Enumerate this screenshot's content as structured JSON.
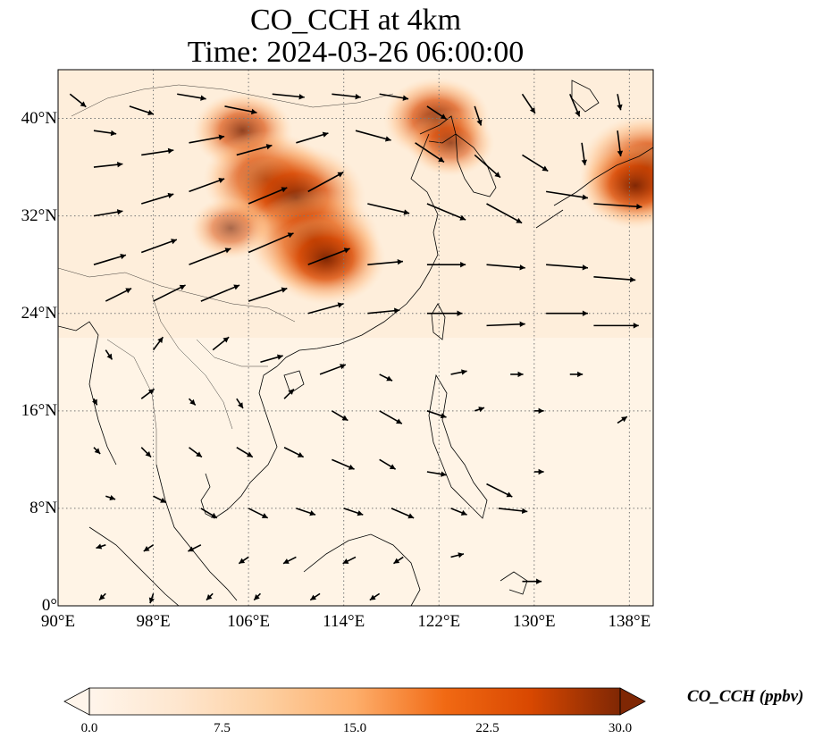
{
  "title": {
    "line1": "CO_CCH at 4km",
    "line2": "Time: 2024-03-26 06:00:00"
  },
  "map": {
    "lon_range": [
      90,
      140
    ],
    "lat_range": [
      0,
      44
    ],
    "lat_ticks": [
      {
        "value": 0,
        "label": "0°"
      },
      {
        "value": 8,
        "label": "8°N"
      },
      {
        "value": 16,
        "label": "16°N"
      },
      {
        "value": 24,
        "label": "24°N"
      },
      {
        "value": 32,
        "label": "32°N"
      },
      {
        "value": 40,
        "label": "40°N"
      }
    ],
    "lon_ticks": [
      {
        "value": 90,
        "label": "90°E"
      },
      {
        "value": 98,
        "label": "98°E"
      },
      {
        "value": 106,
        "label": "106°E"
      },
      {
        "value": 114,
        "label": "114°E"
      },
      {
        "value": 122,
        "label": "122°E"
      },
      {
        "value": 130,
        "label": "130°E"
      },
      {
        "value": 138,
        "label": "138°E"
      }
    ],
    "gridlines": "dotted",
    "plumes": [
      {
        "lon": 105.5,
        "lat": 39.0,
        "value": 18
      },
      {
        "lon": 107.5,
        "lat": 35.0,
        "value": 26
      },
      {
        "lon": 110.0,
        "lat": 33.5,
        "value": 30
      },
      {
        "lon": 111.5,
        "lat": 30.0,
        "value": 28
      },
      {
        "lon": 112.5,
        "lat": 28.5,
        "value": 24
      },
      {
        "lon": 104.5,
        "lat": 31.0,
        "value": 12
      },
      {
        "lon": 121.8,
        "lat": 40.0,
        "value": 20
      },
      {
        "lon": 123.0,
        "lat": 38.0,
        "value": 14
      },
      {
        "lon": 139.5,
        "lat": 36.0,
        "value": 29
      },
      {
        "lon": 138.5,
        "lat": 34.5,
        "value": 22
      }
    ],
    "wind_vectors": [
      [
        91,
        42,
        1.0,
        -0.8
      ],
      [
        93,
        39,
        1.4,
        -0.2
      ],
      [
        96,
        41,
        1.5,
        -0.5
      ],
      [
        100,
        42,
        1.8,
        -0.3
      ],
      [
        104,
        41,
        2.0,
        -0.4
      ],
      [
        108,
        42,
        2.0,
        -0.2
      ],
      [
        113,
        42,
        1.8,
        -0.2
      ],
      [
        117,
        42,
        1.8,
        -0.3
      ],
      [
        121,
        41,
        1.2,
        -0.8
      ],
      [
        125,
        41,
        0.4,
        -1.2
      ],
      [
        129,
        42,
        0.8,
        -1.2
      ],
      [
        133,
        42,
        0.6,
        -1.4
      ],
      [
        137,
        42,
        0.2,
        -1.0
      ],
      [
        93,
        36,
        1.8,
        0.2
      ],
      [
        97,
        37,
        2.0,
        0.3
      ],
      [
        101,
        38,
        2.2,
        0.4
      ],
      [
        105,
        37,
        2.2,
        0.6
      ],
      [
        110,
        38,
        2.0,
        0.6
      ],
      [
        115,
        39,
        2.2,
        -0.6
      ],
      [
        120,
        38,
        1.8,
        -1.2
      ],
      [
        125,
        37,
        1.6,
        -1.4
      ],
      [
        129,
        37,
        1.6,
        -1.0
      ],
      [
        134,
        38,
        0.2,
        -1.4
      ],
      [
        137,
        39,
        0.2,
        -1.6
      ],
      [
        93,
        32,
        1.8,
        0.3
      ],
      [
        97,
        33,
        2.0,
        0.6
      ],
      [
        101,
        34,
        2.2,
        0.8
      ],
      [
        106,
        33,
        2.4,
        1.0
      ],
      [
        111,
        34,
        2.2,
        1.2
      ],
      [
        116,
        33,
        2.6,
        -0.6
      ],
      [
        121,
        33,
        2.4,
        -1.0
      ],
      [
        126,
        33,
        2.2,
        -1.2
      ],
      [
        131,
        34,
        2.6,
        -0.4
      ],
      [
        135,
        33,
        3.0,
        -0.2
      ],
      [
        93,
        28,
        2.0,
        0.6
      ],
      [
        97,
        29,
        2.2,
        0.8
      ],
      [
        101,
        28,
        2.6,
        1.0
      ],
      [
        106,
        29,
        2.8,
        1.2
      ],
      [
        111,
        28,
        2.6,
        1.0
      ],
      [
        116,
        28,
        2.2,
        0.2
      ],
      [
        121,
        28,
        2.4,
        0.0
      ],
      [
        126,
        28,
        2.4,
        -0.2
      ],
      [
        131,
        28,
        2.6,
        -0.2
      ],
      [
        135,
        27,
        2.6,
        -0.2
      ],
      [
        94,
        25,
        1.6,
        0.8
      ],
      [
        98,
        25,
        2.0,
        1.0
      ],
      [
        102,
        25,
        2.4,
        1.0
      ],
      [
        106,
        25,
        2.4,
        0.8
      ],
      [
        111,
        24,
        2.2,
        0.6
      ],
      [
        116,
        24,
        2.0,
        0.2
      ],
      [
        121,
        24,
        2.2,
        0.0
      ],
      [
        126,
        23,
        2.4,
        0.1
      ],
      [
        131,
        24,
        2.6,
        0.0
      ],
      [
        135,
        23,
        2.8,
        0.0
      ],
      [
        94,
        21,
        0.4,
        -0.6
      ],
      [
        98,
        21,
        0.6,
        0.8
      ],
      [
        103,
        21,
        1.0,
        0.8
      ],
      [
        107,
        20,
        1.4,
        0.4
      ],
      [
        112,
        19,
        1.6,
        0.6
      ],
      [
        117,
        19,
        0.8,
        -0.4
      ],
      [
        123,
        19,
        1.0,
        0.2
      ],
      [
        128,
        19,
        0.8,
        0.0
      ],
      [
        133,
        19,
        0.8,
        0.0
      ],
      [
        93,
        17,
        0.2,
        -0.4
      ],
      [
        97,
        17,
        0.8,
        0.6
      ],
      [
        101,
        17,
        0.4,
        -0.4
      ],
      [
        105,
        17,
        0.4,
        -0.6
      ],
      [
        109,
        17,
        0.6,
        0.6
      ],
      [
        113,
        16,
        1.0,
        -0.6
      ],
      [
        117,
        16,
        1.4,
        -0.8
      ],
      [
        121,
        16,
        1.2,
        -0.4
      ],
      [
        125,
        16,
        0.6,
        0.2
      ],
      [
        130,
        16,
        0.6,
        0.0
      ],
      [
        137,
        15,
        0.6,
        0.4
      ],
      [
        93,
        13,
        0.4,
        -0.4
      ],
      [
        97,
        13,
        0.6,
        -0.6
      ],
      [
        101,
        13,
        0.8,
        -0.6
      ],
      [
        105,
        13,
        1.0,
        -0.6
      ],
      [
        109,
        13,
        1.2,
        -0.6
      ],
      [
        113,
        12,
        1.4,
        -0.6
      ],
      [
        117,
        12,
        1.0,
        -0.6
      ],
      [
        121,
        11,
        1.2,
        -0.2
      ],
      [
        126,
        10,
        1.6,
        -0.8
      ],
      [
        130,
        11,
        0.6,
        0.0
      ],
      [
        94,
        9,
        0.6,
        -0.2
      ],
      [
        98,
        9,
        0.8,
        -0.4
      ],
      [
        102,
        8,
        1.0,
        -0.6
      ],
      [
        106,
        8,
        1.2,
        -0.6
      ],
      [
        110,
        8,
        1.2,
        -0.4
      ],
      [
        114,
        8,
        1.2,
        -0.4
      ],
      [
        118,
        8,
        1.4,
        -0.6
      ],
      [
        123,
        8,
        1.0,
        -0.4
      ],
      [
        127,
        8,
        1.8,
        -0.2
      ],
      [
        94,
        5,
        -0.6,
        -0.2
      ],
      [
        98,
        5,
        -0.6,
        -0.4
      ],
      [
        102,
        5,
        -0.8,
        -0.4
      ],
      [
        106,
        4,
        -0.6,
        -0.4
      ],
      [
        110,
        4,
        -0.8,
        -0.4
      ],
      [
        115,
        4,
        -0.8,
        -0.4
      ],
      [
        119,
        4,
        -0.6,
        -0.4
      ],
      [
        123,
        4,
        0.8,
        0.2
      ],
      [
        129,
        2,
        1.2,
        0.0
      ],
      [
        94,
        1,
        -0.4,
        -0.4
      ],
      [
        98,
        1,
        -0.2,
        -0.6
      ],
      [
        103,
        1,
        -0.4,
        -0.4
      ],
      [
        107,
        1,
        -0.4,
        -0.4
      ],
      [
        112,
        1,
        -0.6,
        -0.4
      ],
      [
        117,
        1,
        -0.6,
        -0.4
      ]
    ]
  },
  "colorbar": {
    "label": "CO_CCH (ppbv)",
    "min": 0.0,
    "max": 30.0,
    "ticks": [
      "0.0",
      "7.5",
      "15.0",
      "22.5",
      "30.0"
    ],
    "extend": "both",
    "colormap": [
      "#fff5eb",
      "#fdd6ae",
      "#fdab67",
      "#f67824",
      "#d94801",
      "#a63603",
      "#7f2704"
    ]
  },
  "colors": {
    "background_fill": "#fff4e6",
    "coastline": "#000000",
    "gridline": "#777777",
    "wind_vector": "#000000"
  }
}
